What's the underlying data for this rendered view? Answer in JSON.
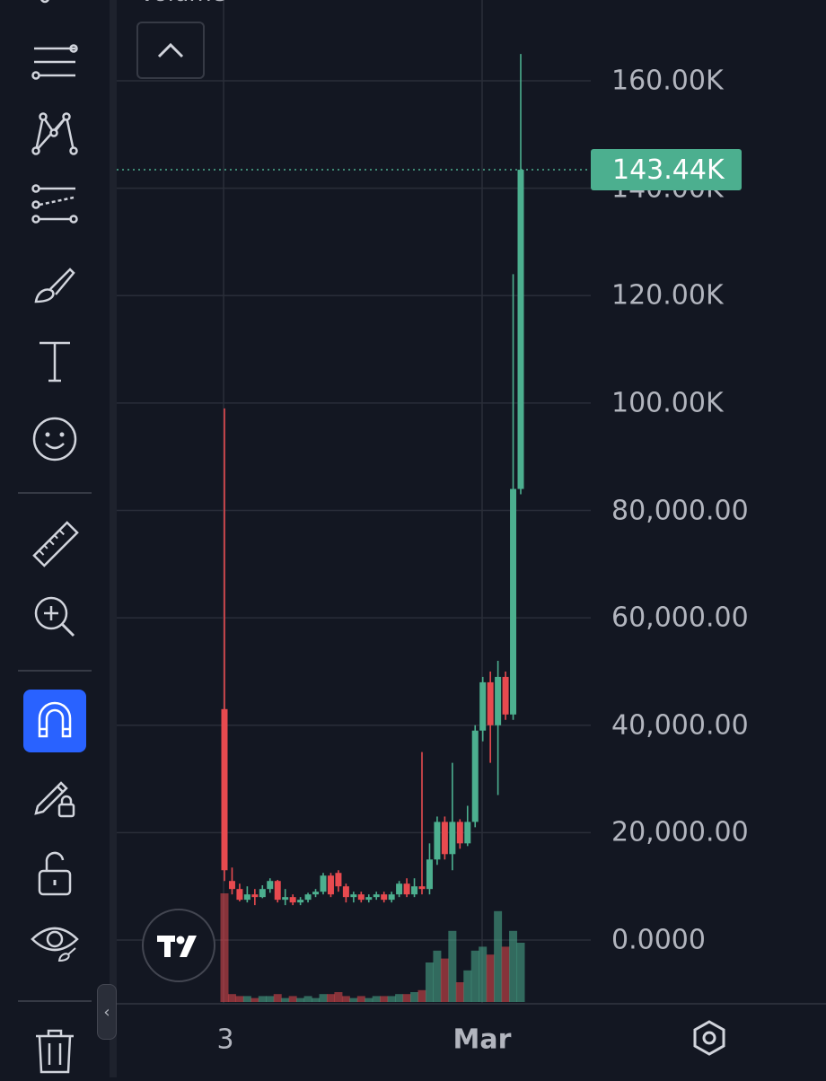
{
  "header": {
    "pane_label": "Volume"
  },
  "sidebar": {
    "tools": [
      {
        "icon": "trend-lines-icon"
      },
      {
        "icon": "pattern-icon"
      },
      {
        "icon": "forecast-icon"
      },
      {
        "icon": "brush-icon"
      },
      {
        "icon": "text-icon"
      },
      {
        "icon": "emoji-icon"
      },
      {
        "icon": "ruler-icon"
      },
      {
        "icon": "zoom-in-icon"
      },
      {
        "icon": "magnet-icon",
        "active": true
      },
      {
        "icon": "lock-drawings-icon"
      },
      {
        "icon": "unlock-icon"
      },
      {
        "icon": "eye-icon"
      },
      {
        "icon": "trash-icon"
      }
    ]
  },
  "colors": {
    "up": "#4caf8f",
    "down": "#e84a4f",
    "background": "#131722",
    "grid": "#2a2e39"
  },
  "chart_data": {
    "type": "candlestick",
    "y_axis": {
      "ticks": [
        0,
        20000,
        40000,
        60000,
        80000,
        100000,
        120000,
        140000,
        160000
      ],
      "tick_labels": [
        "0.0000",
        "20,000.00",
        "40,000.00",
        "60,000.00",
        "80,000.00",
        "100.00K",
        "120.00K",
        "140.00K",
        "160.00K"
      ]
    },
    "x_axis": {
      "tick_labels": [
        "3",
        "Mar"
      ]
    },
    "last_price_label": "143.44K",
    "last_price": 143440,
    "candles": [
      {
        "o": 43000,
        "h": 99000,
        "l": 11000,
        "c": 13000
      },
      {
        "o": 11000,
        "h": 13500,
        "l": 8500,
        "c": 9500
      },
      {
        "o": 9500,
        "h": 10500,
        "l": 7200,
        "c": 7500
      },
      {
        "o": 7500,
        "h": 10000,
        "l": 7000,
        "c": 8500
      },
      {
        "o": 8500,
        "h": 9500,
        "l": 6500,
        "c": 8000
      },
      {
        "o": 8000,
        "h": 10200,
        "l": 7800,
        "c": 9500
      },
      {
        "o": 9500,
        "h": 11500,
        "l": 8800,
        "c": 11000
      },
      {
        "o": 11000,
        "h": 11200,
        "l": 7000,
        "c": 7500
      },
      {
        "o": 7500,
        "h": 9500,
        "l": 6500,
        "c": 8000
      },
      {
        "o": 8000,
        "h": 8500,
        "l": 6500,
        "c": 7000
      },
      {
        "o": 7000,
        "h": 8000,
        "l": 6500,
        "c": 7500
      },
      {
        "o": 7500,
        "h": 8800,
        "l": 7000,
        "c": 8500
      },
      {
        "o": 8500,
        "h": 9500,
        "l": 8000,
        "c": 9000
      },
      {
        "o": 9000,
        "h": 12500,
        "l": 8500,
        "c": 12000
      },
      {
        "o": 12000,
        "h": 12500,
        "l": 8000,
        "c": 8500
      },
      {
        "o": 12500,
        "h": 13000,
        "l": 9000,
        "c": 10000
      },
      {
        "o": 10000,
        "h": 10500,
        "l": 7000,
        "c": 8000
      },
      {
        "o": 8000,
        "h": 9000,
        "l": 7000,
        "c": 8500
      },
      {
        "o": 8500,
        "h": 9000,
        "l": 7000,
        "c": 7500
      },
      {
        "o": 7500,
        "h": 8500,
        "l": 7000,
        "c": 8000
      },
      {
        "o": 8000,
        "h": 9000,
        "l": 7500,
        "c": 8500
      },
      {
        "o": 8500,
        "h": 9000,
        "l": 7000,
        "c": 7500
      },
      {
        "o": 7500,
        "h": 9000,
        "l": 7000,
        "c": 8500
      },
      {
        "o": 8500,
        "h": 11000,
        "l": 8000,
        "c": 10500
      },
      {
        "o": 10500,
        "h": 11500,
        "l": 8000,
        "c": 8500
      },
      {
        "o": 8500,
        "h": 11500,
        "l": 8000,
        "c": 10000
      },
      {
        "o": 10000,
        "h": 35000,
        "l": 8500,
        "c": 9500
      },
      {
        "o": 9500,
        "h": 18000,
        "l": 8500,
        "c": 15000
      },
      {
        "o": 15000,
        "h": 23000,
        "l": 14000,
        "c": 22000
      },
      {
        "o": 22000,
        "h": 23000,
        "l": 15000,
        "c": 16000
      },
      {
        "o": 16000,
        "h": 33000,
        "l": 13000,
        "c": 22000
      },
      {
        "o": 22000,
        "h": 22500,
        "l": 17000,
        "c": 18000
      },
      {
        "o": 18000,
        "h": 25000,
        "l": 17500,
        "c": 22000
      },
      {
        "o": 22000,
        "h": 40000,
        "l": 21000,
        "c": 39000
      },
      {
        "o": 39000,
        "h": 49000,
        "l": 37000,
        "c": 48000
      },
      {
        "o": 48000,
        "h": 50000,
        "l": 33000,
        "c": 40000
      },
      {
        "o": 40000,
        "h": 52000,
        "l": 27000,
        "c": 49000
      },
      {
        "o": 49000,
        "h": 50000,
        "l": 41000,
        "c": 42000
      },
      {
        "o": 42000,
        "h": 124000,
        "l": 41000,
        "c": 84000
      },
      {
        "o": 84000,
        "h": 165000,
        "l": 83000,
        "c": 143440
      }
    ],
    "volume": [
      0.55,
      0.04,
      0.03,
      0.03,
      0.02,
      0.03,
      0.03,
      0.04,
      0.02,
      0.03,
      0.02,
      0.03,
      0.02,
      0.04,
      0.04,
      0.05,
      0.03,
      0.02,
      0.03,
      0.02,
      0.03,
      0.03,
      0.03,
      0.04,
      0.04,
      0.05,
      0.06,
      0.2,
      0.26,
      0.22,
      0.36,
      0.1,
      0.16,
      0.26,
      0.28,
      0.24,
      0.46,
      0.28,
      0.36,
      0.3
    ]
  }
}
